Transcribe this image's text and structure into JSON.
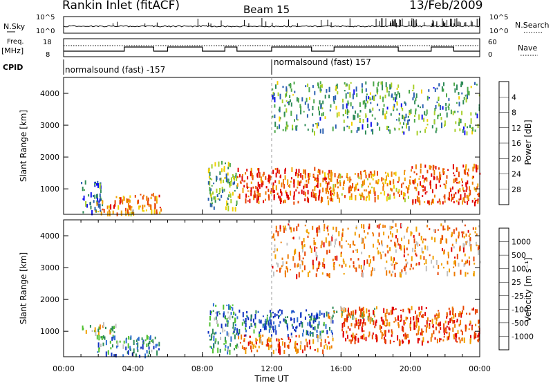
{
  "header": {
    "station": "Rankin Inlet (fitACF)",
    "beam": "Beam 15",
    "date": "13/Feb/2009"
  },
  "top_panels": {
    "nsky_label": "N.Sky",
    "nsky_ticks": [
      "10^5",
      "10^0"
    ],
    "nsearch_label": "N.Search",
    "nsearch_ticks": [
      "10^5",
      "10^0"
    ],
    "freq_label": "Freq.",
    "freq_unit": "[MHz]",
    "freq_ticks": [
      "18",
      "8"
    ],
    "nave_label": "Nave",
    "nave_ticks": [
      "60",
      "0"
    ],
    "cpid_label": "CPID",
    "cpid_segments": [
      {
        "label": "normalsound (fast) -157",
        "start_h": 0,
        "end_h": 12
      },
      {
        "label": "normalsound (fast) 157",
        "start_h": 12,
        "end_h": 24
      }
    ]
  },
  "chart_data": [
    {
      "type": "heatmap",
      "title": "",
      "xlabel": "",
      "ylabel": "Slant Range [km]",
      "xlim": [
        0,
        24
      ],
      "ylim": [
        200,
        4500
      ],
      "yticks": [
        "1000",
        "2000",
        "3000",
        "4000"
      ],
      "colorbar": {
        "label": "Power [dB]",
        "ticks": [
          "4",
          "8",
          "12",
          "16",
          "20",
          "24",
          "28"
        ],
        "colors": [
          "#1010f0",
          "#2a5fb0",
          "#2e8b57",
          "#4ca84a",
          "#a8cf28",
          "#f0d000",
          "#f0a000",
          "#ee7a00",
          "#e84400",
          "#e00000"
        ]
      },
      "echo_regions": [
        {
          "t0": 1.0,
          "t1": 2.2,
          "r0": 300,
          "r1": 1300,
          "level": 0.2
        },
        {
          "t0": 1.8,
          "t1": 3.8,
          "r0": 250,
          "r1": 800,
          "level": 0.75
        },
        {
          "t0": 3.6,
          "t1": 5.6,
          "r0": 250,
          "r1": 900,
          "level": 0.7
        },
        {
          "t0": 8.3,
          "t1": 10.0,
          "r0": 400,
          "r1": 1900,
          "level": 0.35
        },
        {
          "t0": 10.0,
          "t1": 15.5,
          "r0": 600,
          "r1": 1700,
          "level": 0.85
        },
        {
          "t0": 15.0,
          "t1": 20.0,
          "r0": 700,
          "r1": 1600,
          "level": 0.7
        },
        {
          "t0": 20.0,
          "t1": 24.0,
          "r0": 600,
          "r1": 1800,
          "level": 0.85
        },
        {
          "t0": 12.0,
          "t1": 24.0,
          "r0": 2800,
          "r1": 4400,
          "level": 0.3
        }
      ]
    },
    {
      "type": "heatmap",
      "title": "",
      "xlabel": "Time UT",
      "ylabel": "Slant Range [km]",
      "xlim": [
        0,
        24
      ],
      "ylim": [
        200,
        4500
      ],
      "xticks": [
        "00:00",
        "04:00",
        "08:00",
        "12:00",
        "16:00",
        "20:00",
        "00:00"
      ],
      "yticks": [
        "1000",
        "2000",
        "3000",
        "4000"
      ],
      "colorbar": {
        "label": "Velocity [m s⁻¹]",
        "ticks": [
          "1000",
          "500",
          "100",
          "25",
          "-25",
          "-100",
          "-500",
          "-1000"
        ],
        "colors": [
          "#1030c0",
          "#3070d0",
          "#2e8b57",
          "#50c030",
          "#c0c0c0",
          "#f0a000",
          "#ee7a00",
          "#e84400",
          "#e00000"
        ]
      },
      "echo_regions": [
        {
          "t0": 1.0,
          "t1": 3.0,
          "r0": 1000,
          "r1": 1300,
          "level": 0.5
        },
        {
          "t0": 1.8,
          "t1": 5.5,
          "r0": 250,
          "r1": 900,
          "level": 0.25
        },
        {
          "t0": 8.3,
          "t1": 10.0,
          "r0": 400,
          "r1": 1900,
          "level": 0.3
        },
        {
          "t0": 10.0,
          "t1": 15.5,
          "r0": 900,
          "r1": 1700,
          "level": 0.15
        },
        {
          "t0": 10.0,
          "t1": 15.5,
          "r0": 400,
          "r1": 900,
          "level": 0.75
        },
        {
          "t0": 15.0,
          "t1": 18.0,
          "r0": 1400,
          "r1": 1800,
          "level": 0.5
        },
        {
          "t0": 16.0,
          "t1": 24.0,
          "r0": 700,
          "r1": 1800,
          "level": 0.85
        },
        {
          "t0": 12.0,
          "t1": 24.0,
          "r0": 2800,
          "r1": 4400,
          "level": 0.7
        }
      ]
    }
  ]
}
